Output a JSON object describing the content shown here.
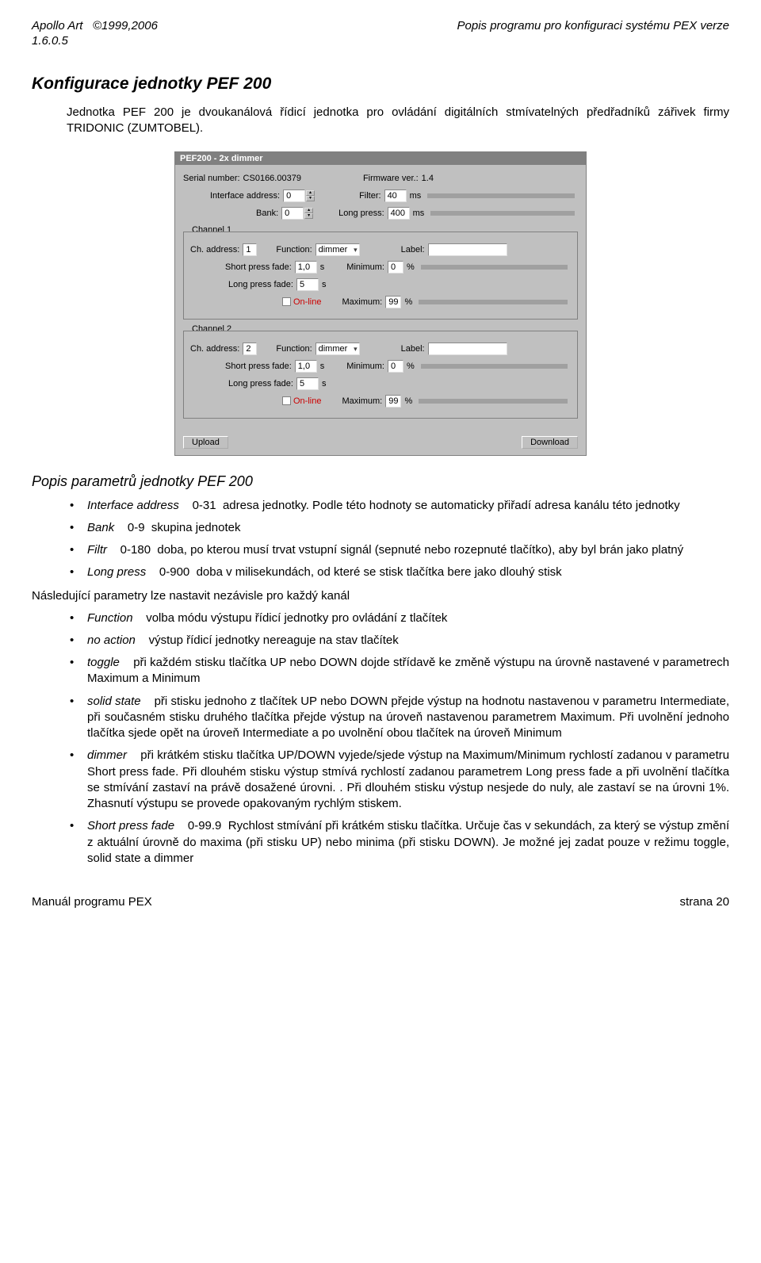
{
  "header": {
    "left": "Apollo Art   ©1999,2006",
    "right": "Popis  programu  pro  konfiguraci  systému  PEX  verze",
    "version": "1.6.0.5"
  },
  "section_title": "Konfigurace jednotky PEF 200",
  "intro": "Jednotka PEF 200 je dvoukanálová řídicí jednotka pro ovládání digitálních stmívatelných předřadníků zářivek firmy TRIDONIC (ZUMTOBEL).",
  "dialog": {
    "title": "PEF200 - 2x dimmer",
    "serial_label": "Serial number:",
    "serial_value": "CS0166.00379",
    "fw_label": "Firmware ver.:",
    "fw_value": "1.4",
    "iface_label": "Interface address:",
    "iface_value": "0",
    "filter_label": "Filter:",
    "filter_value": "40",
    "filter_unit": "ms",
    "bank_label": "Bank:",
    "bank_value": "0",
    "lp_label": "Long press:",
    "lp_value": "400",
    "lp_unit": "ms",
    "ch1_label": "Channel 1",
    "ch2_label": "Channel 2",
    "chaddr_label": "Ch. address:",
    "func_label": "Function:",
    "func_value": "dimmer",
    "label_label": "Label:",
    "spf_label": "Short press fade:",
    "spf_value": "1,0",
    "spf_unit": "s",
    "min_label": "Minimum:",
    "min_value": "0",
    "pct": "%",
    "lpf_label": "Long press fade:",
    "lpf_value": "5",
    "online_label": "On-line",
    "max_label": "Maximum:",
    "max_value": "99",
    "ch1_addr": "1",
    "ch2_addr": "2",
    "upload": "Upload",
    "download": "Download"
  },
  "subsection_title": "Popis parametrů jednotky PEF 200",
  "params1": [
    {
      "name": "Interface address",
      "range": "0-31",
      "text": "adresa jednotky. Podle této hodnoty se automaticky přiřadí adresa kanálu této jednotky"
    },
    {
      "name": "Bank",
      "range": "0-9",
      "text": "skupina jednotek"
    },
    {
      "name": "Filtr",
      "range": "0-180",
      "text": "doba, po kterou musí trvat vstupní signál (sepnuté nebo rozepnuté tlačítko), aby byl brán jako platný"
    },
    {
      "name": "Long press",
      "range": "0-900",
      "text": "doba v milisekundách, od které se stisk tlačítka bere jako dlouhý stisk"
    }
  ],
  "inter_text": "Následující parametry lze nastavit nezávisle pro každý kanál",
  "params2": [
    {
      "name": "Function",
      "text": "volba módu výstupu řídicí jednotky pro ovládání z tlačítek"
    },
    {
      "name": "no action",
      "text": "výstup řídicí jednotky nereaguje na stav tlačítek"
    },
    {
      "name": "toggle",
      "text": "při každém stisku tlačítka UP nebo DOWN dojde střídavě ke změně výstupu na úrovně nastavené v parametrech Maximum a Minimum"
    },
    {
      "name": "solid state",
      "text": "při stisku jednoho z tlačítek UP nebo DOWN přejde výstup na hodnotu nastavenou v parametru Intermediate, při současném stisku druhého tlačítka přejde výstup na úroveň nastavenou parametrem Maximum. Při uvolnění jednoho tlačítka sjede opět na úroveň Intermediate a po uvolnění obou tlačítek na úroveň Minimum"
    },
    {
      "name": "dimmer",
      "text": "při krátkém stisku  tlačítka UP/DOWN vyjede/sjede výstup na Maximum/Minimum rychlostí zadanou v parametru Short press fade. Při dlouhém stisku výstup stmívá rychlostí zadanou parametrem Long press fade a při uvolnění tlačítka se stmívání zastaví na právě dosažené úrovni. . Při dlouhém stisku výstup nesjede do nuly, ale zastaví se na úrovni 1%. Zhasnutí výstupu se provede opakovaným rychlým stiskem."
    },
    {
      "name": "Short press fade",
      "range": "0-99.9",
      "text": "Rychlost stmívání při krátkém stisku tlačítka. Určuje čas v sekundách, za který se výstup změní z aktuální úrovně do maxima (při stisku UP) nebo minima (při stisku DOWN). Je možné jej zadat pouze v režimu toggle, solid state a dimmer"
    }
  ],
  "footer": {
    "left": "Manuál programu PEX",
    "right": "strana 20"
  }
}
